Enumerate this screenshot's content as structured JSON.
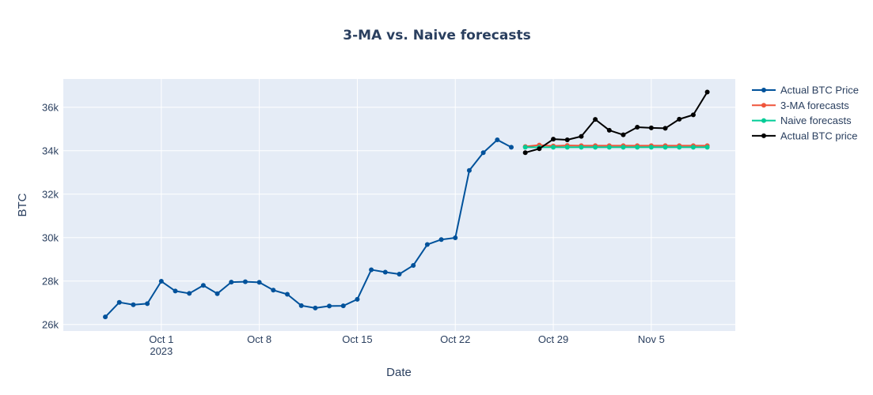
{
  "chart_data": {
    "type": "line",
    "title": "3-MA vs. Naive forecasts",
    "xlabel": "Date",
    "ylabel": "BTC",
    "xlim": [
      "2023-09-24",
      "2023-11-11"
    ],
    "ylim": [
      25700,
      37300
    ],
    "x_ticks": [
      {
        "date": "2023-10-01",
        "label": "Oct 1",
        "sublabel": "2023"
      },
      {
        "date": "2023-10-08",
        "label": "Oct 8",
        "sublabel": ""
      },
      {
        "date": "2023-10-15",
        "label": "Oct 15",
        "sublabel": ""
      },
      {
        "date": "2023-10-22",
        "label": "Oct 22",
        "sublabel": ""
      },
      {
        "date": "2023-10-29",
        "label": "Oct 29",
        "sublabel": ""
      },
      {
        "date": "2023-11-05",
        "label": "Nov 5",
        "sublabel": ""
      }
    ],
    "y_ticks": [
      {
        "value": 26000,
        "label": "26k"
      },
      {
        "value": 28000,
        "label": "28k"
      },
      {
        "value": 30000,
        "label": "30k"
      },
      {
        "value": 32000,
        "label": "32k"
      },
      {
        "value": 34000,
        "label": "34k"
      },
      {
        "value": 36000,
        "label": "36k"
      }
    ],
    "grid": true,
    "legend_position": "right",
    "series": [
      {
        "name": "Actual BTC Price",
        "color": "#00529b",
        "x": [
          "2023-09-27",
          "2023-09-28",
          "2023-09-29",
          "2023-09-30",
          "2023-10-01",
          "2023-10-02",
          "2023-10-03",
          "2023-10-04",
          "2023-10-05",
          "2023-10-06",
          "2023-10-07",
          "2023-10-08",
          "2023-10-09",
          "2023-10-10",
          "2023-10-11",
          "2023-10-12",
          "2023-10-13",
          "2023-10-14",
          "2023-10-15",
          "2023-10-16",
          "2023-10-17",
          "2023-10-18",
          "2023-10-19",
          "2023-10-20",
          "2023-10-21",
          "2023-10-22",
          "2023-10-23",
          "2023-10-24",
          "2023-10-25",
          "2023-10-26"
        ],
        "values": [
          26350,
          27020,
          26910,
          26960,
          27990,
          27540,
          27430,
          27800,
          27420,
          27950,
          27970,
          27940,
          27580,
          27390,
          26870,
          26760,
          26850,
          26860,
          27160,
          28520,
          28410,
          28320,
          28720,
          29680,
          29910,
          29990,
          33090,
          33910,
          34500,
          34160
        ]
      },
      {
        "name": "3-MA forecasts",
        "color": "#ef553b",
        "x": [
          "2023-10-27",
          "2023-10-28",
          "2023-10-29",
          "2023-10-30",
          "2023-10-31",
          "2023-11-01",
          "2023-11-02",
          "2023-11-03",
          "2023-11-04",
          "2023-11-05",
          "2023-11-06",
          "2023-11-07",
          "2023-11-08",
          "2023-11-09"
        ],
        "values": [
          34190,
          34260,
          34220,
          34240,
          34230,
          34230,
          34230,
          34230,
          34230,
          34230,
          34230,
          34230,
          34230,
          34230
        ]
      },
      {
        "name": "Naive forecasts",
        "color": "#00cc96",
        "x": [
          "2023-10-27",
          "2023-10-28",
          "2023-10-29",
          "2023-10-30",
          "2023-10-31",
          "2023-11-01",
          "2023-11-02",
          "2023-11-03",
          "2023-11-04",
          "2023-11-05",
          "2023-11-06",
          "2023-11-07",
          "2023-11-08",
          "2023-11-09"
        ],
        "values": [
          34160,
          34160,
          34160,
          34160,
          34160,
          34160,
          34160,
          34160,
          34160,
          34160,
          34160,
          34160,
          34160,
          34160
        ]
      },
      {
        "name": "Actual BTC price",
        "color": "#000000",
        "x": [
          "2023-10-27",
          "2023-10-28",
          "2023-10-29",
          "2023-10-30",
          "2023-10-31",
          "2023-11-01",
          "2023-11-02",
          "2023-11-03",
          "2023-11-04",
          "2023-11-05",
          "2023-11-06",
          "2023-11-07",
          "2023-11-08",
          "2023-11-09"
        ],
        "values": [
          33910,
          34090,
          34530,
          34500,
          34660,
          35440,
          34940,
          34730,
          35080,
          35050,
          35030,
          35450,
          35650,
          36700
        ]
      }
    ]
  }
}
